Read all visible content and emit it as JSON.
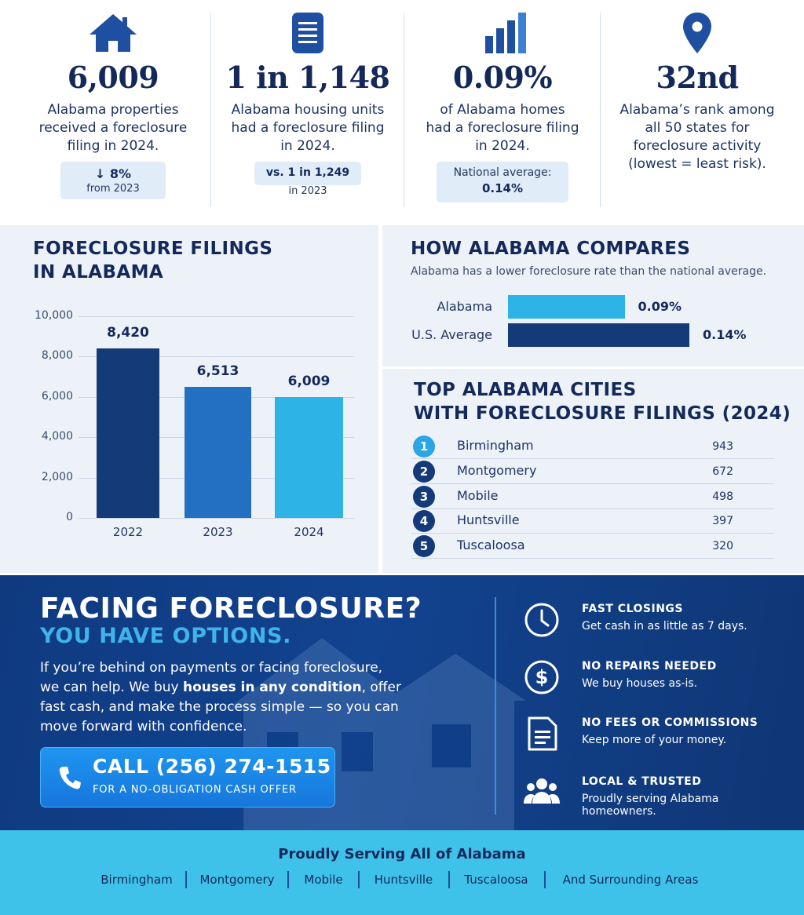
{
  "stats": [
    {
      "icon": "house-icon",
      "value": "6,009",
      "desc": "Alabama properties received a foreclosure filing in 2024.",
      "pill_main": "↓ 8%",
      "pill_sub": "from 2023"
    },
    {
      "icon": "document-icon",
      "value": "1 in 1,148",
      "desc": "Alabama housing units had a foreclosure filing in 2024.",
      "pill_main": "vs. 1 in 1,249",
      "pill_sub": "in 2023"
    },
    {
      "icon": "bar-chart-icon",
      "value": "0.09%",
      "desc": "of Alabama homes had a foreclosure filing in 2024.",
      "pill_main": "National average:",
      "pill_sub": "0.14%"
    },
    {
      "icon": "location-pin-icon",
      "value": "32nd",
      "desc": "Alabama’s rank among all 50 states for foreclosure activity (lowest = least risk)."
    }
  ],
  "filings_panel": {
    "title_line1": "FORECLOSURE FILINGS",
    "title_line2": "IN ALABAMA"
  },
  "chart_data": {
    "type": "bar",
    "categories": [
      "2022",
      "2023",
      "2024"
    ],
    "values": [
      8420,
      6513,
      6009
    ],
    "value_labels": [
      "8,420",
      "6,513",
      "6,009"
    ],
    "ylim": [
      0,
      10000
    ],
    "yticks": [
      "0",
      "2,000",
      "4,000",
      "6,000",
      "8,000",
      "10,000"
    ],
    "grid": true,
    "colors": [
      "#143a78",
      "#2370c2",
      "#2db3e6"
    ]
  },
  "compare": {
    "title": "HOW ALABAMA COMPARES",
    "subtitle": "Alabama has a lower foreclosure rate than the national average.",
    "rows": [
      {
        "label": "Alabama",
        "value": 0.09,
        "value_label": "0.09%",
        "color": "#2db3e6"
      },
      {
        "label": "U.S. Average",
        "value": 0.14,
        "value_label": "0.14%",
        "color": "#143a78"
      }
    ]
  },
  "cities": {
    "title_line1": "TOP ALABAMA CITIES",
    "title_line2": "WITH FORECLOSURE FILINGS (2024)",
    "rows": [
      {
        "rank": "1",
        "name": "Birmingham",
        "count": "943"
      },
      {
        "rank": "2",
        "name": "Montgomery",
        "count": "672"
      },
      {
        "rank": "3",
        "name": "Mobile",
        "count": "498"
      },
      {
        "rank": "4",
        "name": "Huntsville",
        "count": "397"
      },
      {
        "rank": "5",
        "name": "Tuscaloosa",
        "count": "320"
      }
    ]
  },
  "cta": {
    "heading": "FACING FORECLOSURE?",
    "subheading": "YOU HAVE OPTIONS.",
    "para_before": "If you’re behind on payments or facing foreclosure, we can help. We buy ",
    "para_bold": "houses in any condition",
    "para_after": ", offer fast cash, and make the process simple — so you can move forward with confidence.",
    "call_main": "CALL (256) 274-1515",
    "call_sub": "FOR A NO-OBLIGATION CASH OFFER",
    "benefits": [
      {
        "icon": "clock-icon",
        "title": "FAST CLOSINGS",
        "text": "Get cash in as little as 7 days."
      },
      {
        "icon": "dollar-icon",
        "title": "NO REPAIRS NEEDED",
        "text": "We buy houses as-is."
      },
      {
        "icon": "receipt-icon",
        "title": "NO FEES OR COMMISSIONS",
        "text": "Keep more of your money."
      },
      {
        "icon": "people-icon",
        "title": "LOCAL & TRUSTED",
        "text": "Proudly serving Alabama homeowners."
      }
    ]
  },
  "footer": {
    "title": "Proudly Serving All of Alabama",
    "cities": [
      "Birmingham",
      "Montgomery",
      "Mobile",
      "Huntsville",
      "Tuscaloosa",
      "And Surrounding Areas"
    ]
  },
  "colors": {
    "navy": "#14295a",
    "brand_blue": "#1e4fa0",
    "accent_cyan": "#2db3e6",
    "cta_bg": "#12438f",
    "footer_bg": "#3fc2ea"
  }
}
